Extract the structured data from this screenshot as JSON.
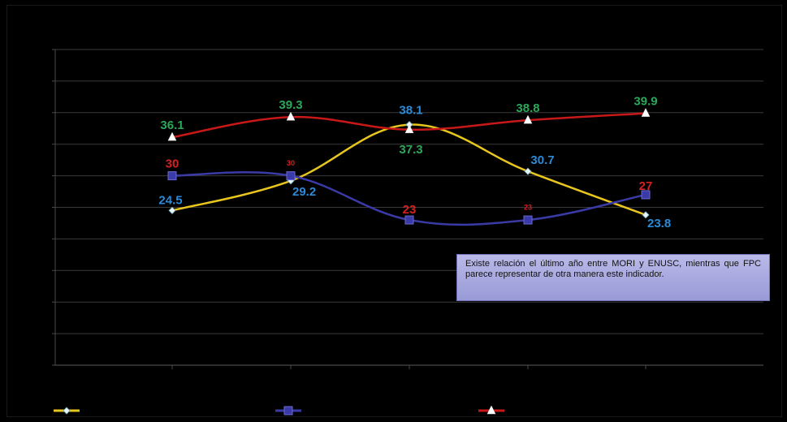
{
  "chart_data": {
    "type": "line",
    "title": "",
    "xlabel": "",
    "ylabel": "",
    "categories": [
      "",
      "",
      "",
      "",
      ""
    ],
    "ylim": [
      0,
      50
    ],
    "grid": true,
    "legend": "bottom",
    "series": [
      {
        "color": "#e8c61e",
        "marker": "diamond",
        "values": [
          24.5,
          29.2,
          38.1,
          30.7,
          23.8
        ],
        "labels": [
          "24.5",
          "29.2",
          "38.1",
          "30.7",
          "23.8"
        ],
        "label_color": "#2a8ad8",
        "label_pos": [
          "above",
          "below-right",
          "above",
          "above",
          "below-right"
        ]
      },
      {
        "color": "#3b3ba8",
        "marker": "square",
        "values": [
          30,
          30,
          23,
          23,
          27
        ],
        "labels": [
          "30",
          "30",
          "23",
          "23",
          "27"
        ],
        "label_color": "#d42020",
        "label_pos": [
          "above",
          "above-small",
          "above",
          "above-small",
          "above"
        ]
      },
      {
        "color": "#c81818",
        "marker": "triangle",
        "values": [
          36.1,
          39.3,
          37.3,
          38.8,
          39.9
        ],
        "labels": [
          "36.1",
          "39.3",
          "37.3",
          "38.8",
          "39.9"
        ],
        "label_color": "#2aa85a",
        "label_pos": [
          "above",
          "above",
          "below",
          "above",
          "above"
        ]
      }
    ]
  },
  "annotation": {
    "text": "Existe relación el último año entre MORI y ENUSC, mientras que FPC parece representar de otra manera este indicador."
  }
}
